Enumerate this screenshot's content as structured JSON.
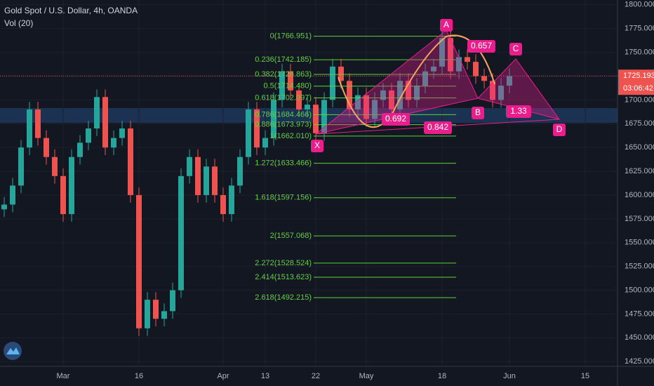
{
  "chart_data": {
    "type": "candlestick",
    "title": "Gold Spot / U.S. Dollar, 4h, OANDA",
    "subtitle": "Vol (20)",
    "categories": [
      null,
      null,
      null,
      null,
      null,
      null,
      null,
      "Mar",
      null,
      null,
      null,
      null,
      null,
      null,
      null,
      null,
      "16",
      null,
      null,
      null,
      null,
      null,
      null,
      null,
      null,
      null,
      "Apr",
      null,
      null,
      null,
      null,
      "13",
      null,
      null,
      null,
      null,
      null,
      "22",
      null,
      null,
      null,
      null,
      null,
      "May",
      null,
      null,
      null,
      null,
      null,
      null,
      null,
      null,
      "18",
      null,
      null,
      null,
      null,
      null,
      null,
      null,
      "Jun",
      null,
      null,
      null,
      null,
      null,
      null,
      null,
      null,
      "15"
    ],
    "open": [
      1585,
      1590,
      1610,
      1650,
      1690,
      1660,
      1640,
      1620,
      1580,
      1640,
      1655,
      1670,
      1703,
      1650,
      1660,
      1670,
      1600,
      1460,
      1490,
      1470,
      1478,
      1500,
      1620,
      1640,
      1600,
      1630,
      1600,
      1580,
      1610,
      1640,
      1690,
      1650,
      1660,
      1700,
      1730,
      1710,
      1690,
      1695,
      1665,
      1700,
      1735,
      1720,
      1690,
      1705,
      1680,
      1700,
      1710,
      1690,
      1720,
      1700,
      1715,
      1730,
      1735,
      1765,
      1730,
      1745,
      1740,
      1725,
      1720,
      1700,
      1715,
      null,
      null,
      null,
      null,
      null,
      null,
      null,
      null,
      null
    ],
    "high": [
      1598,
      1618,
      1658,
      1698,
      1698,
      1668,
      1648,
      1628,
      1648,
      1663,
      1678,
      1711,
      1711,
      1668,
      1678,
      1678,
      1608,
      1498,
      1498,
      1486,
      1508,
      1628,
      1648,
      1648,
      1638,
      1638,
      1608,
      1618,
      1648,
      1698,
      1698,
      1668,
      1708,
      1738,
      1738,
      1718,
      1703,
      1703,
      1708,
      1743,
      1743,
      1728,
      1713,
      1713,
      1708,
      1718,
      1718,
      1728,
      1728,
      1723,
      1738,
      1743,
      1773,
      1773,
      1753,
      1753,
      1748,
      1733,
      1728,
      1723,
      1733,
      null,
      null,
      null,
      null,
      null,
      null,
      null,
      null,
      null
    ],
    "low": [
      1577,
      1582,
      1602,
      1642,
      1652,
      1632,
      1612,
      1572,
      1572,
      1632,
      1647,
      1662,
      1642,
      1642,
      1652,
      1592,
      1452,
      1452,
      1462,
      1462,
      1470,
      1492,
      1612,
      1592,
      1592,
      1592,
      1572,
      1572,
      1602,
      1632,
      1642,
      1642,
      1652,
      1692,
      1702,
      1682,
      1682,
      1657,
      1657,
      1692,
      1712,
      1682,
      1682,
      1672,
      1672,
      1692,
      1682,
      1682,
      1692,
      1692,
      1707,
      1722,
      1727,
      1722,
      1722,
      1732,
      1717,
      1712,
      1692,
      1692,
      1707,
      null,
      null,
      null,
      null,
      null,
      null,
      null,
      null,
      null
    ],
    "close": [
      1590,
      1610,
      1650,
      1690,
      1660,
      1640,
      1620,
      1580,
      1640,
      1655,
      1670,
      1703,
      1650,
      1660,
      1670,
      1600,
      1460,
      1490,
      1470,
      1478,
      1500,
      1620,
      1640,
      1600,
      1630,
      1600,
      1580,
      1610,
      1640,
      1690,
      1650,
      1660,
      1700,
      1730,
      1710,
      1690,
      1695,
      1665,
      1700,
      1735,
      1720,
      1690,
      1705,
      1680,
      1700,
      1710,
      1690,
      1720,
      1700,
      1715,
      1730,
      1735,
      1765,
      1730,
      1745,
      1740,
      1725,
      1720,
      1700,
      1715,
      1725,
      null,
      null,
      null,
      null,
      null,
      null,
      null,
      null,
      null
    ],
    "up_color": "#26a69a",
    "down_color": "#ef5350",
    "ylim": [
      1420,
      1805
    ],
    "yticks": [
      {
        "value": 1425,
        "label": "1425.000"
      },
      {
        "value": 1450,
        "label": "1450.000"
      },
      {
        "value": 1475,
        "label": "1475.000"
      },
      {
        "value": 1500,
        "label": "1500.000"
      },
      {
        "value": 1525,
        "label": "1525.000"
      },
      {
        "value": 1550,
        "label": "1550.000"
      },
      {
        "value": 1575,
        "label": "1575.000"
      },
      {
        "value": 1600,
        "label": "1600.000"
      },
      {
        "value": 1625,
        "label": "1625.000"
      },
      {
        "value": 1650,
        "label": "1650.000"
      },
      {
        "value": 1675,
        "label": "1675.000"
      },
      {
        "value": 1700,
        "label": "1700.000"
      },
      {
        "value": 1725,
        "label": "1725.000"
      },
      {
        "value": 1750,
        "label": "1750.000"
      },
      {
        "value": 1775,
        "label": "1775.000"
      },
      {
        "value": 1800,
        "label": "1800.000"
      }
    ],
    "last_price": {
      "value": 1725.193,
      "label": "1725.193"
    },
    "countdown": "03:06:42",
    "fib_color": "#5fd33a",
    "fib_levels": [
      {
        "value": 1766.951,
        "label": "0(1766.951)"
      },
      {
        "value": 1742.185,
        "label": "0.236(1742.185)"
      },
      {
        "value": 1726.863,
        "label": "0.382(1726.863)"
      },
      {
        "value": 1714.48,
        "label": "0.5(1714.480)"
      },
      {
        "value": 1702.097,
        "label": "0.618(1702.097)"
      },
      {
        "value": 1684.466,
        "label": "0.786(1684.466)"
      },
      {
        "value": 1673.973,
        "label": "0.886(1673.973)"
      },
      {
        "value": 1662.01,
        "label": "1(1662.010)"
      },
      {
        "value": 1633.466,
        "label": "1.272(1633.466)"
      },
      {
        "value": 1597.156,
        "label": "1.618(1597.156)"
      },
      {
        "value": 1557.068,
        "label": "2(1557.068)"
      },
      {
        "value": 1528.524,
        "label": "2.272(1528.524)"
      },
      {
        "value": 1513.623,
        "label": "2.414(1513.623)"
      },
      {
        "value": 1492.215,
        "label": "2.618(1492.215)"
      }
    ],
    "pattern_points": [
      "X",
      "A",
      "B",
      "C",
      "D"
    ],
    "pattern_ratios": [
      "0.657",
      "0.692",
      "0.842",
      "1.33"
    ]
  }
}
